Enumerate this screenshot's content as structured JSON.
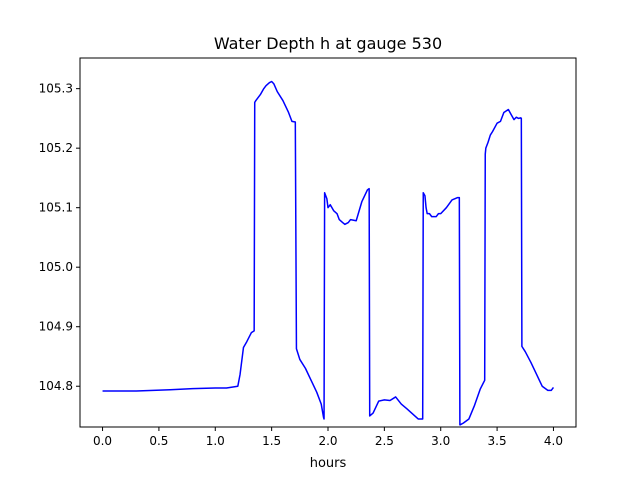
{
  "chart_data": {
    "type": "line",
    "title": "Water Depth h at gauge 530",
    "xlabel": "hours",
    "ylabel": "",
    "xlim": [
      -0.2,
      4.2
    ],
    "ylim": [
      104.7315,
      105.3515
    ],
    "xticks": [
      0.0,
      0.5,
      1.0,
      1.5,
      2.0,
      2.5,
      3.0,
      3.5,
      4.0
    ],
    "xtick_labels": [
      "0.0",
      "0.5",
      "1.0",
      "1.5",
      "2.0",
      "2.5",
      "3.0",
      "3.5",
      "4.0"
    ],
    "yticks": [
      104.8,
      104.9,
      105.0,
      105.1,
      105.2,
      105.3
    ],
    "ytick_labels": [
      "104.8",
      "104.9",
      "105.0",
      "105.1",
      "105.2",
      "105.3"
    ],
    "grid": false,
    "series": [
      {
        "color": "#0000ff",
        "x": [
          0.0,
          0.3,
          0.6,
          0.8,
          1.0,
          1.1,
          1.2,
          1.22,
          1.25,
          1.28,
          1.32,
          1.345,
          1.35,
          1.36,
          1.38,
          1.4,
          1.43,
          1.45,
          1.48,
          1.5,
          1.52,
          1.55,
          1.6,
          1.65,
          1.68,
          1.71,
          1.72,
          1.75,
          1.8,
          1.85,
          1.9,
          1.94,
          1.96,
          1.965,
          1.97,
          1.99,
          2.0,
          2.02,
          2.05,
          2.08,
          2.1,
          2.13,
          2.15,
          2.18,
          2.2,
          2.25,
          2.3,
          2.35,
          2.365,
          2.37,
          2.4,
          2.45,
          2.5,
          2.55,
          2.6,
          2.65,
          2.7,
          2.8,
          2.84,
          2.845,
          2.86,
          2.87,
          2.88,
          2.9,
          2.92,
          2.94,
          2.96,
          2.98,
          3.0,
          3.05,
          3.1,
          3.15,
          3.165,
          3.17,
          3.2,
          3.25,
          3.3,
          3.35,
          3.39,
          3.395,
          3.4,
          3.42,
          3.44,
          3.46,
          3.5,
          3.53,
          3.56,
          3.6,
          3.62,
          3.65,
          3.67,
          3.69,
          3.71,
          3.715,
          3.72,
          3.75,
          3.8,
          3.85,
          3.9,
          3.95,
          3.98,
          4.0
        ],
        "y": [
          104.792,
          104.792,
          104.794,
          104.796,
          104.797,
          104.797,
          104.8,
          104.82,
          104.865,
          104.875,
          104.89,
          104.893,
          105.277,
          105.28,
          105.285,
          105.29,
          105.3,
          105.305,
          105.31,
          105.312,
          105.308,
          105.295,
          105.28,
          105.26,
          105.245,
          105.244,
          104.863,
          104.845,
          104.83,
          104.81,
          104.79,
          104.77,
          104.748,
          104.745,
          105.125,
          105.115,
          105.1,
          105.105,
          105.095,
          105.09,
          105.08,
          105.075,
          105.072,
          105.075,
          105.08,
          105.078,
          105.11,
          105.13,
          105.132,
          104.75,
          104.755,
          104.775,
          104.777,
          104.776,
          104.782,
          104.77,
          104.762,
          104.745,
          104.745,
          105.125,
          105.12,
          105.1,
          105.09,
          105.09,
          105.085,
          105.085,
          105.085,
          105.09,
          105.09,
          105.1,
          105.113,
          105.117,
          105.117,
          104.735,
          104.738,
          104.745,
          104.768,
          104.795,
          104.81,
          105.19,
          105.2,
          105.21,
          105.222,
          105.228,
          105.242,
          105.245,
          105.26,
          105.265,
          105.258,
          105.248,
          105.252,
          105.25,
          105.251,
          105.25,
          104.867,
          104.858,
          104.84,
          104.82,
          104.8,
          104.793,
          104.793,
          104.798
        ]
      }
    ]
  }
}
